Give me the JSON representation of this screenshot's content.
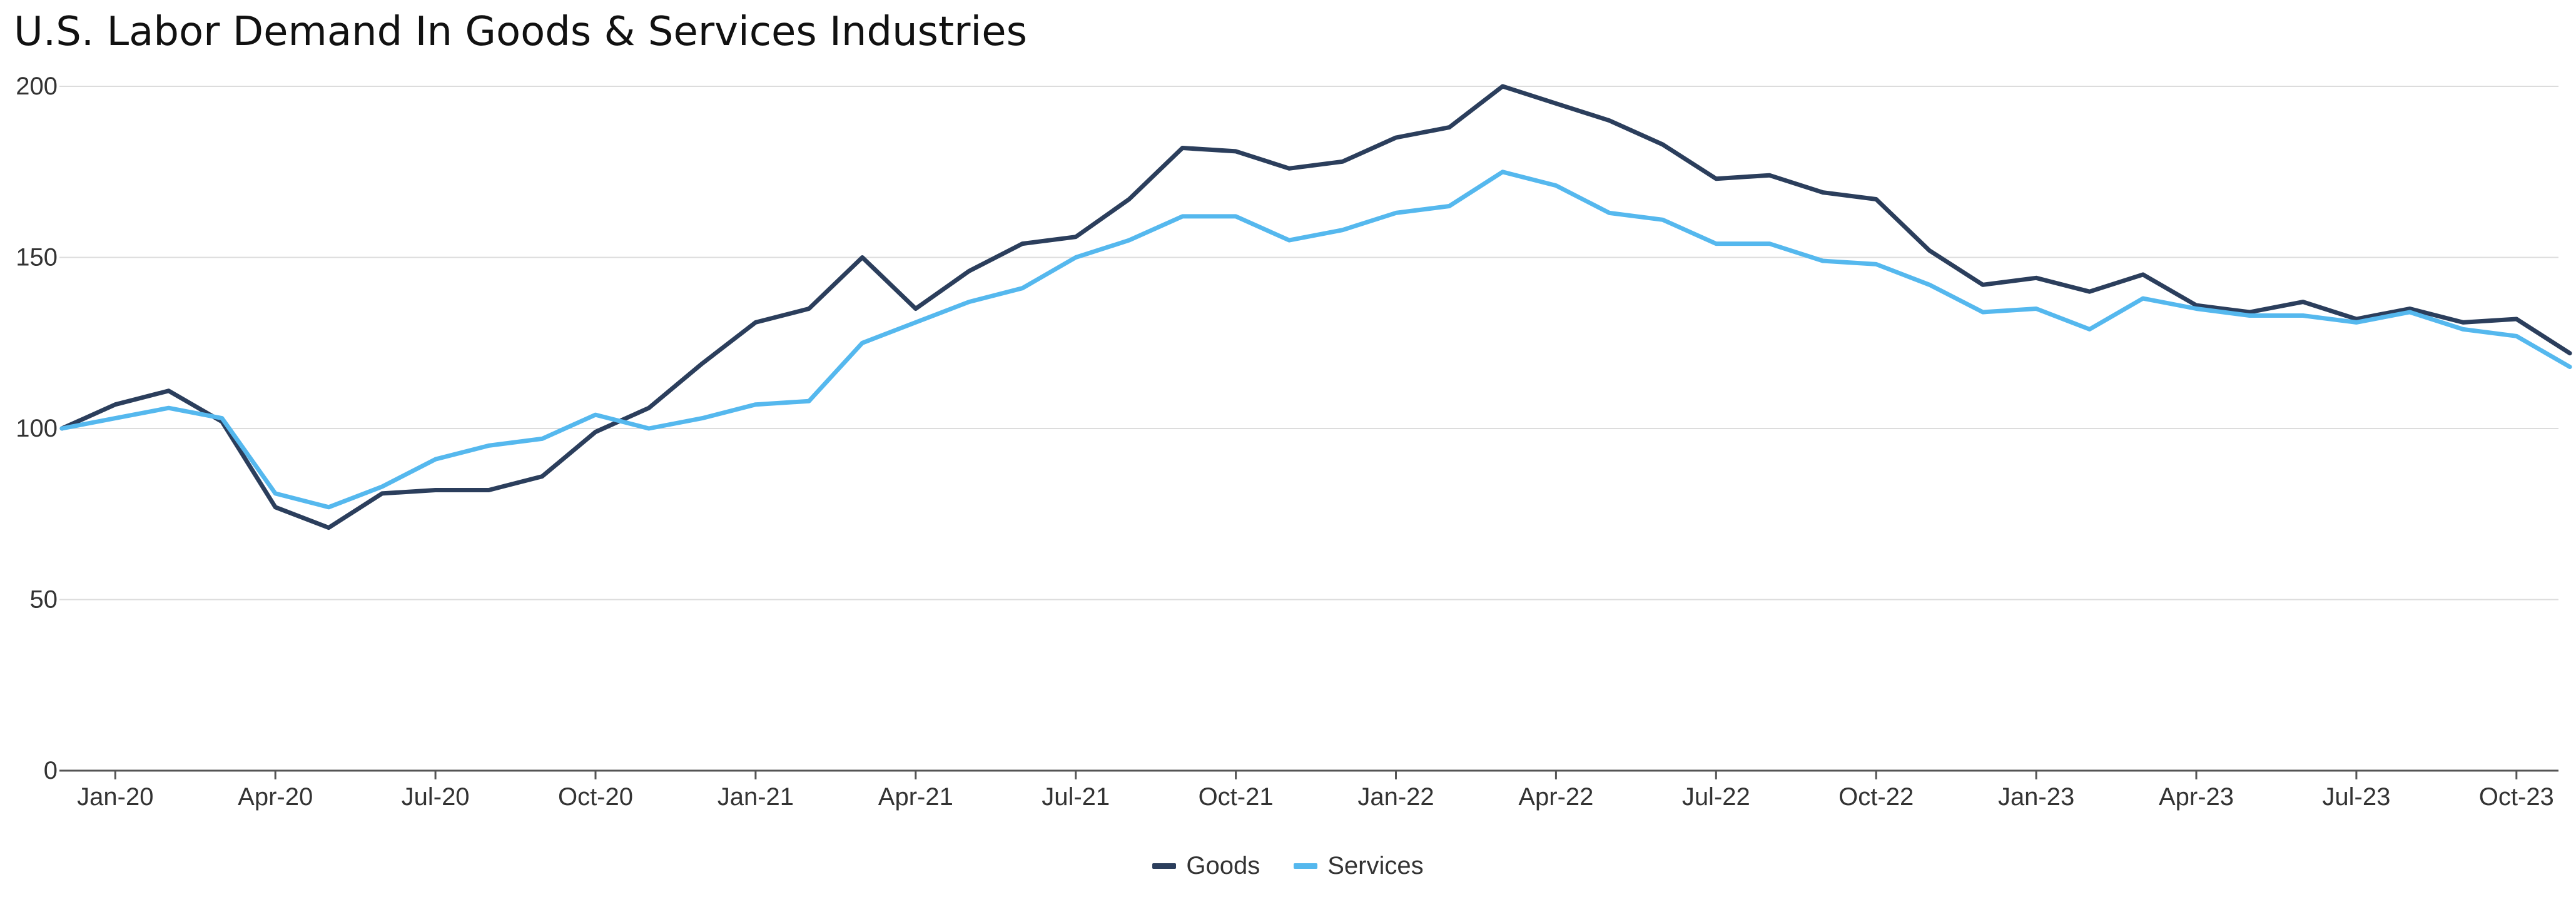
{
  "chart_data": {
    "type": "line",
    "title": "U.S. Labor Demand In Goods & Services Industries",
    "xlabel": "",
    "ylabel": "",
    "ylim": [
      0,
      200
    ],
    "yticks": [
      0,
      50,
      100,
      150,
      200
    ],
    "grid": true,
    "legend_position": "bottom-center",
    "x": [
      "Dec-19",
      "Jan-20",
      "Feb-20",
      "Mar-20",
      "Apr-20",
      "May-20",
      "Jun-20",
      "Jul-20",
      "Aug-20",
      "Sep-20",
      "Oct-20",
      "Nov-20",
      "Dec-20",
      "Jan-21",
      "Feb-21",
      "Mar-21",
      "Apr-21",
      "May-21",
      "Jun-21",
      "Jul-21",
      "Aug-21",
      "Sep-21",
      "Oct-21",
      "Nov-21",
      "Dec-21",
      "Jan-22",
      "Feb-22",
      "Mar-22",
      "Apr-22",
      "May-22",
      "Jun-22",
      "Jul-22",
      "Aug-22",
      "Sep-22",
      "Oct-22",
      "Nov-22",
      "Dec-22",
      "Jan-23",
      "Feb-23",
      "Mar-23",
      "Apr-23",
      "May-23",
      "Jun-23",
      "Jul-23",
      "Aug-23",
      "Sep-23",
      "Oct-23",
      "Nov-23"
    ],
    "xtick_labels": [
      "Jan-20",
      "Apr-20",
      "Jul-20",
      "Oct-20",
      "Jan-21",
      "Apr-21",
      "Jul-21",
      "Oct-21",
      "Jan-22",
      "Apr-22",
      "Jul-22",
      "Oct-22",
      "Jan-23",
      "Apr-23",
      "Jul-23",
      "Oct-23"
    ],
    "series": [
      {
        "name": "Goods",
        "color": "#2b3e5c",
        "values": [
          100,
          107,
          111,
          102,
          77,
          71,
          81,
          82,
          82,
          86,
          99,
          106,
          119,
          131,
          135,
          150,
          135,
          146,
          154,
          156,
          167,
          182,
          181,
          176,
          178,
          185,
          188,
          200,
          195,
          190,
          183,
          173,
          174,
          169,
          167,
          152,
          142,
          144,
          140,
          145,
          136,
          134,
          137,
          132,
          135,
          131,
          132,
          122
        ]
      },
      {
        "name": "Services",
        "color": "#55b8ee",
        "values": [
          100,
          103,
          106,
          103,
          81,
          77,
          83,
          91,
          95,
          97,
          104,
          100,
          103,
          107,
          108,
          125,
          131,
          137,
          141,
          150,
          155,
          162,
          162,
          155,
          158,
          163,
          165,
          175,
          171,
          163,
          161,
          154,
          154,
          149,
          148,
          142,
          134,
          135,
          129,
          138,
          135,
          133,
          133,
          131,
          134,
          129,
          127,
          118
        ]
      }
    ]
  }
}
